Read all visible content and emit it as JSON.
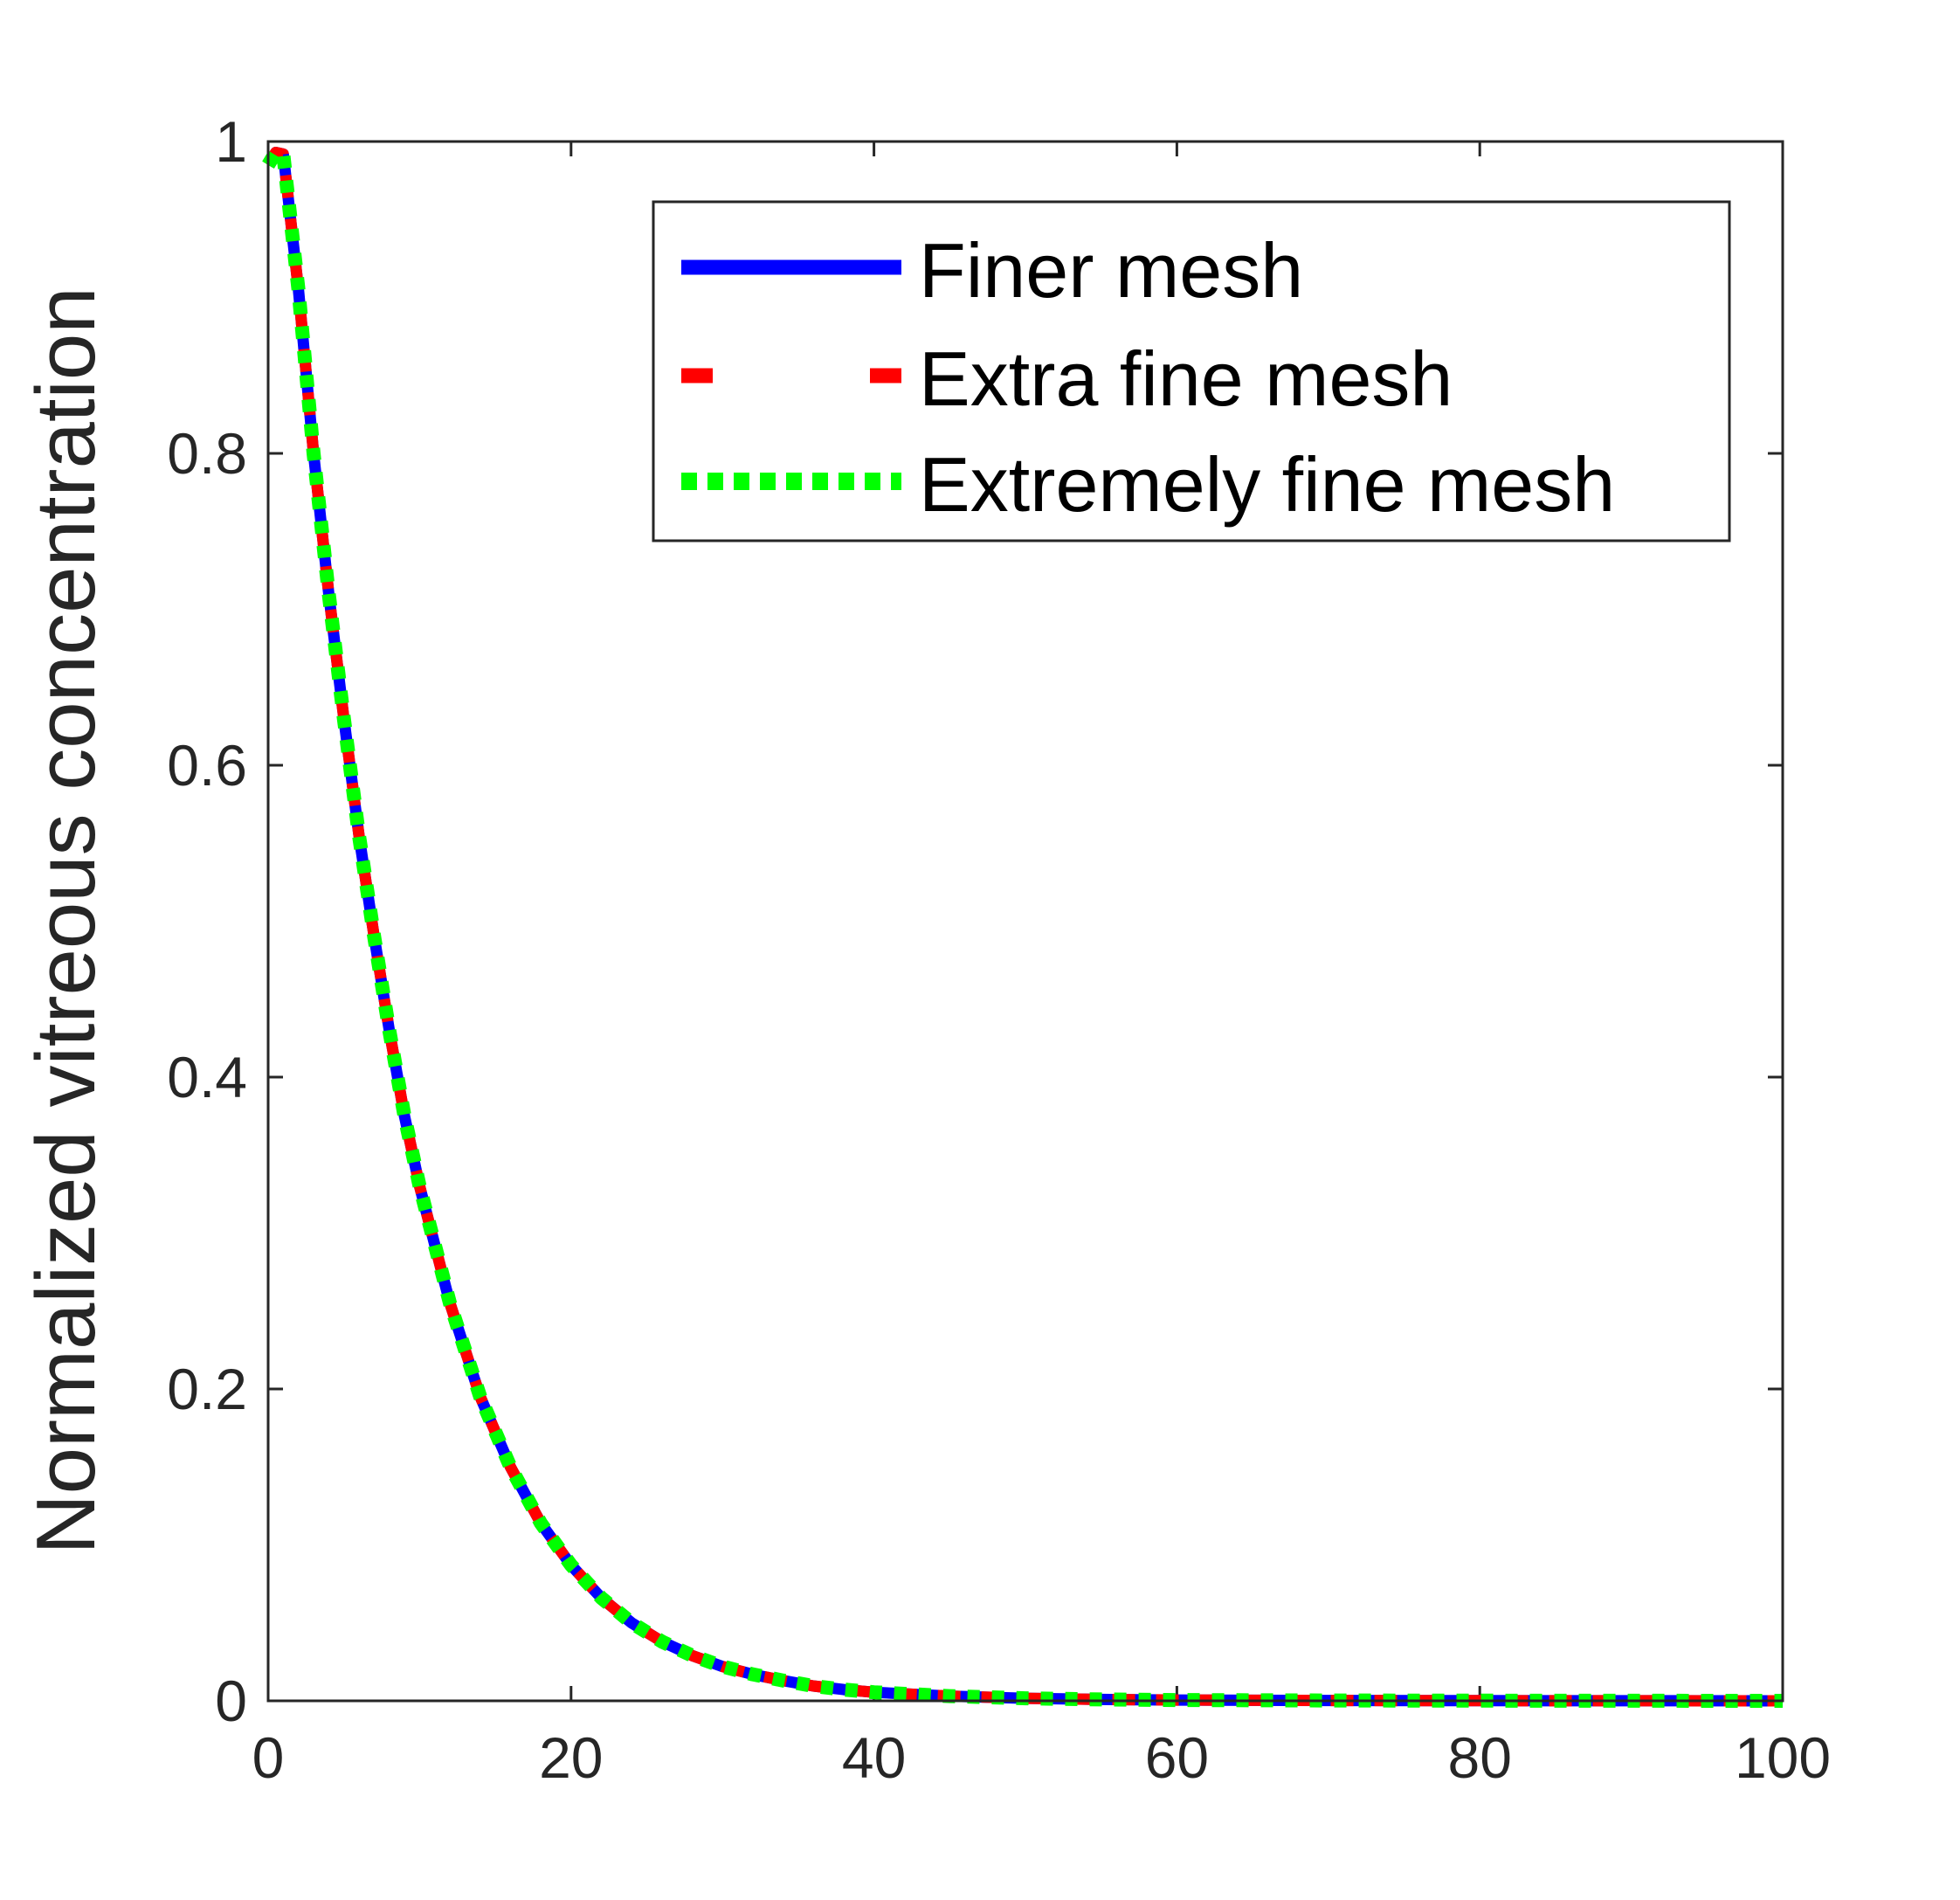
{
  "chart_data": {
    "type": "line",
    "title": "",
    "xlabel": "",
    "ylabel": "Normalized vitreous concentration",
    "xlim": [
      0,
      100
    ],
    "ylim": [
      0,
      1
    ],
    "xticks": [
      0,
      20,
      40,
      60,
      80,
      100
    ],
    "yticks": [
      0,
      0.2,
      0.4,
      0.6,
      0.8,
      1
    ],
    "xtick_labels": [
      "0",
      "20",
      "40",
      "60",
      "80",
      "100"
    ],
    "ytick_labels": [
      "0",
      "0.2",
      "0.4",
      "0.6",
      "0.8",
      "1"
    ],
    "grid": false,
    "legend_position": "top-right",
    "x": [
      0,
      0.5,
      1,
      2,
      3,
      4,
      5,
      6,
      7,
      8,
      9,
      10,
      12,
      14,
      16,
      18,
      20,
      22,
      24,
      26,
      28,
      30,
      32,
      34,
      36,
      38,
      40,
      45,
      50,
      55,
      60,
      70,
      80,
      90,
      100
    ],
    "series": [
      {
        "name": "Finer mesh",
        "color": "#0000ff",
        "style": "solid",
        "values": [
          0.985,
          0.993,
          0.992,
          0.905,
          0.8,
          0.71,
          0.63,
          0.555,
          0.49,
          0.43,
          0.375,
          0.33,
          0.255,
          0.195,
          0.15,
          0.114,
          0.087,
          0.066,
          0.05,
          0.038,
          0.029,
          0.022,
          0.017,
          0.013,
          0.0095,
          0.0072,
          0.0055,
          0.003,
          0.0016,
          0.0009,
          0.0005,
          0.0002,
          0.0001,
          3e-05,
          1e-05
        ]
      },
      {
        "name": "Extra fine mesh",
        "color": "#ff0000",
        "style": "dashed",
        "values": [
          0.985,
          0.993,
          0.992,
          0.905,
          0.8,
          0.71,
          0.63,
          0.555,
          0.49,
          0.43,
          0.375,
          0.33,
          0.255,
          0.195,
          0.15,
          0.114,
          0.087,
          0.066,
          0.05,
          0.038,
          0.029,
          0.022,
          0.017,
          0.013,
          0.0095,
          0.0072,
          0.0055,
          0.003,
          0.0016,
          0.0009,
          0.0005,
          0.0002,
          0.0001,
          3e-05,
          1e-05
        ]
      },
      {
        "name": "Extremely fine mesh",
        "color": "#00ff00",
        "style": "dotted",
        "values": [
          0.985,
          0.993,
          0.992,
          0.905,
          0.8,
          0.71,
          0.63,
          0.555,
          0.49,
          0.43,
          0.375,
          0.33,
          0.255,
          0.195,
          0.15,
          0.114,
          0.087,
          0.066,
          0.05,
          0.038,
          0.029,
          0.022,
          0.017,
          0.013,
          0.0095,
          0.0072,
          0.0055,
          0.003,
          0.0016,
          0.0009,
          0.0005,
          0.0002,
          0.0001,
          3e-05,
          1e-05
        ]
      }
    ]
  }
}
